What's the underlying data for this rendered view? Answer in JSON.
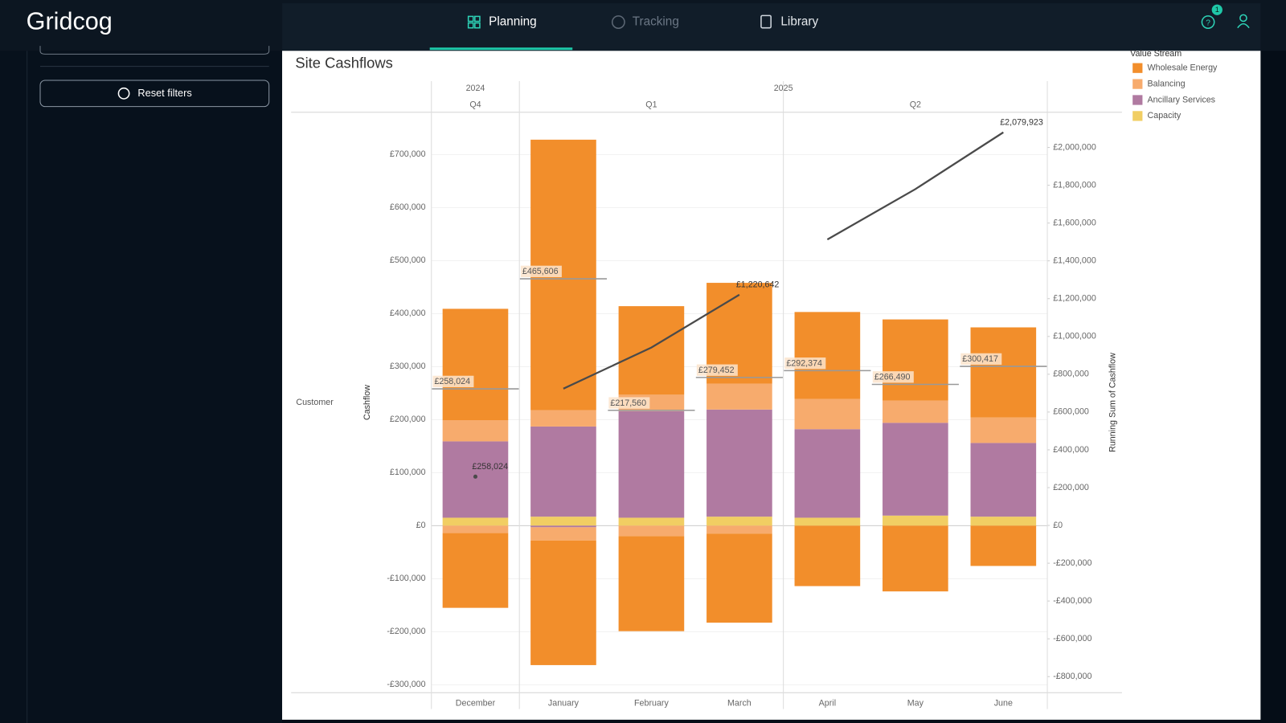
{
  "app": {
    "logo": "Gridcog",
    "tabs": [
      "Planning",
      "Tracking",
      "Library"
    ],
    "notification_count": 1,
    "sidebar": {
      "button": "Reset filters"
    }
  },
  "chart_data": {
    "type": "bar",
    "stacked": true,
    "title": "Site Cashflows",
    "row_label": "Customer",
    "ylabel": "Cashflow",
    "y2label": "Running Sum of Cashflow",
    "legend_title": "Value Stream",
    "years": [
      "2024",
      "2025",
      "2025",
      "2025",
      "2025",
      "2025",
      "2025"
    ],
    "quarters": [
      "Q4",
      "Q1",
      "Q1",
      "Q1",
      "Q2",
      "Q2",
      "Q2"
    ],
    "categories": [
      "December",
      "January",
      "February",
      "March",
      "April",
      "May",
      "June"
    ],
    "series": [
      {
        "name": "Wholesale Energy",
        "color": "#f28e2b",
        "values": [
          210000,
          510000,
          167000,
          190000,
          164000,
          153000,
          170000
        ],
        "negative_values": [
          -141000,
          -235000,
          -179000,
          -168000,
          -114000,
          -124000,
          -76000
        ]
      },
      {
        "name": "Balancing",
        "color": "#f7ab6d",
        "values": [
          40000,
          31000,
          31000,
          49000,
          57000,
          42000,
          48000
        ],
        "negative_values": [
          -14000,
          -25000,
          -20000,
          -15000,
          null,
          null,
          null
        ]
      },
      {
        "name": "Ancillary Services",
        "color": "#b07aa1",
        "values": [
          144000,
          170000,
          201000,
          202000,
          167000,
          175000,
          139000
        ],
        "negative_values": [
          null,
          -3000,
          null,
          null,
          null,
          null,
          null
        ]
      },
      {
        "name": "Capacity",
        "color": "#f1ce63",
        "values": [
          15000,
          17000,
          15000,
          17000,
          15000,
          19000,
          17000
        ],
        "negative_values": [
          null,
          null,
          null,
          null,
          null,
          null,
          null
        ]
      }
    ],
    "totals": {
      "color": "#999999",
      "values": [
        258024,
        465606,
        217560,
        279452,
        292374,
        266490,
        300417
      ],
      "value_labels": [
        "£258,024",
        "£465,606",
        "£217,560",
        "£279,452",
        "£292,374",
        "£266,490",
        "£300,417"
      ]
    },
    "running_sum": {
      "axis": "y2",
      "color": "#4a4a4a",
      "restart_by": "quarter",
      "values": [
        258024,
        723630,
        941190,
        1220642,
        1513016,
        1779506,
        2079923
      ],
      "value_labels": [
        "£258,024",
        null,
        null,
        "£1,220,642",
        null,
        null,
        "£2,079,923"
      ]
    },
    "ylim": [
      -315000,
      775000
    ],
    "yticks": [
      {
        "value": -300000,
        "label": "-£300,000"
      },
      {
        "value": -200000,
        "label": "-£200,000"
      },
      {
        "value": -100000,
        "label": "-£100,000"
      },
      {
        "value": 0,
        "label": "£0"
      },
      {
        "value": 100000,
        "label": "£100,000"
      },
      {
        "value": 200000,
        "label": "£200,000"
      },
      {
        "value": 300000,
        "label": "£300,000"
      },
      {
        "value": 400000,
        "label": "£400,000"
      },
      {
        "value": 500000,
        "label": "£500,000"
      },
      {
        "value": 600000,
        "label": "£600,000"
      },
      {
        "value": 700000,
        "label": "£700,000"
      }
    ],
    "y2lim": [
      -885000,
      2173000
    ],
    "y2ticks": [
      {
        "value": -800000,
        "label": "-£800,000"
      },
      {
        "value": -600000,
        "label": "-£600,000"
      },
      {
        "value": -400000,
        "label": "-£400,000"
      },
      {
        "value": -200000,
        "label": "-£200,000"
      },
      {
        "value": 0,
        "label": "£0"
      },
      {
        "value": 200000,
        "label": "£200,000"
      },
      {
        "value": 400000,
        "label": "£400,000"
      },
      {
        "value": 600000,
        "label": "£600,000"
      },
      {
        "value": 800000,
        "label": "£800,000"
      },
      {
        "value": 1000000,
        "label": "£1,000,000"
      },
      {
        "value": 1200000,
        "label": "£1,200,000"
      },
      {
        "value": 1400000,
        "label": "£1,400,000"
      },
      {
        "value": 1600000,
        "label": "£1,600,000"
      },
      {
        "value": 1800000,
        "label": "£1,800,000"
      },
      {
        "value": 2000000,
        "label": "£2,000,000"
      }
    ],
    "grid": true,
    "legend": "right"
  }
}
